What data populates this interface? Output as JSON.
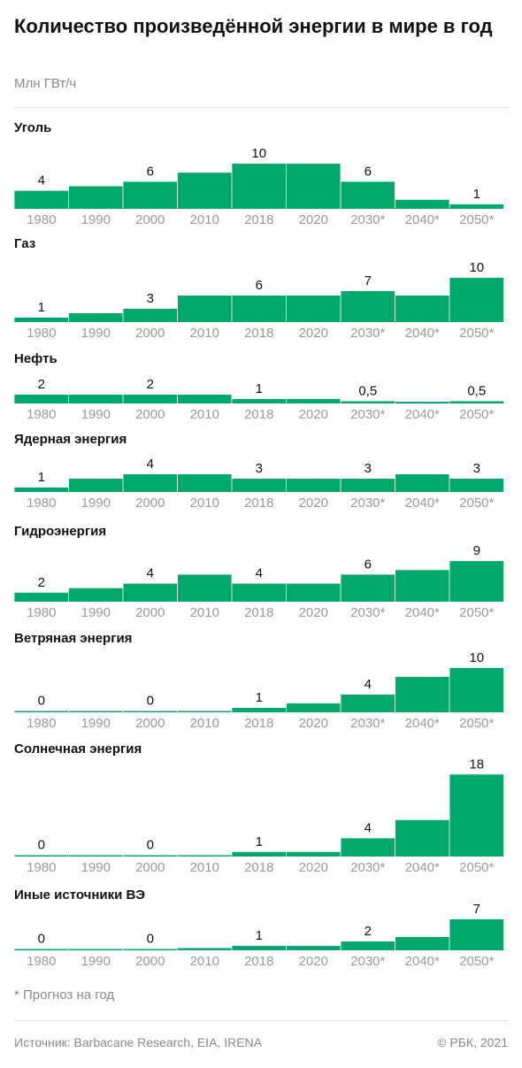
{
  "title": "Количество произведённой энергии в мире в год",
  "units": "Млн ГВт/ч",
  "footnote": "* Прогноз на год",
  "source": "Источник:  Barbacane Research, EIA, IRENA",
  "copyright": "© РБК, 2021",
  "colors": {
    "bar": "#00a86b",
    "tick": "#9a9a9a",
    "rule": "#e2e2e2"
  },
  "chart_data": [
    {
      "type": "bar",
      "title": "Уголь",
      "categories": [
        "1980",
        "1990",
        "2000",
        "2010",
        "2018",
        "2020",
        "2030*",
        "2040*",
        "2050*"
      ],
      "values": [
        4,
        5,
        6,
        8,
        10,
        10,
        6,
        2,
        1
      ],
      "labels": [
        "4",
        "",
        "6",
        "",
        "10",
        "",
        "6",
        "",
        "1"
      ]
    },
    {
      "type": "bar",
      "title": "Газ",
      "categories": [
        "1980",
        "1990",
        "2000",
        "2010",
        "2018",
        "2020",
        "2030*",
        "2040*",
        "2050*"
      ],
      "values": [
        1,
        2,
        3,
        6,
        6,
        6,
        7,
        6,
        10
      ],
      "labels": [
        "1",
        "",
        "3",
        "",
        "6",
        "",
        "7",
        "",
        "10"
      ]
    },
    {
      "type": "bar",
      "title": "Нефть",
      "categories": [
        "1980",
        "1990",
        "2000",
        "2010",
        "2018",
        "2020",
        "2030*",
        "2040*",
        "2050*"
      ],
      "values": [
        2,
        2,
        2,
        2,
        1,
        1,
        0.5,
        0.3,
        0.5
      ],
      "labels": [
        "2",
        "",
        "2",
        "",
        "1",
        "",
        "0,5",
        "",
        "0,5"
      ]
    },
    {
      "type": "bar",
      "title": "Ядерная энергия",
      "categories": [
        "1980",
        "1990",
        "2000",
        "2010",
        "2018",
        "2020",
        "2030*",
        "2040*",
        "2050*"
      ],
      "values": [
        1,
        3,
        4,
        4,
        3,
        3,
        3,
        4,
        3
      ],
      "labels": [
        "1",
        "",
        "4",
        "",
        "3",
        "",
        "3",
        "",
        "3"
      ]
    },
    {
      "type": "bar",
      "title": "Гидроэнергия",
      "categories": [
        "1980",
        "1990",
        "2000",
        "2010",
        "2018",
        "2020",
        "2030*",
        "2040*",
        "2050*"
      ],
      "values": [
        2,
        3,
        4,
        6,
        4,
        4,
        6,
        7,
        9
      ],
      "labels": [
        "2",
        "",
        "4",
        "",
        "4",
        "",
        "6",
        "",
        "9"
      ]
    },
    {
      "type": "bar",
      "title": "Ветряная энергия",
      "categories": [
        "1980",
        "1990",
        "2000",
        "2010",
        "2018",
        "2020",
        "2030*",
        "2040*",
        "2050*"
      ],
      "values": [
        0,
        0,
        0,
        0,
        1,
        2,
        4,
        8,
        10
      ],
      "labels": [
        "0",
        "",
        "0",
        "",
        "1",
        "",
        "4",
        "",
        "10"
      ]
    },
    {
      "type": "bar",
      "title": "Солнечная энергия",
      "categories": [
        "1980",
        "1990",
        "2000",
        "2010",
        "2018",
        "2020",
        "2030*",
        "2040*",
        "2050*"
      ],
      "values": [
        0,
        0,
        0,
        0,
        1,
        1,
        4,
        8,
        18
      ],
      "labels": [
        "0",
        "",
        "0",
        "",
        "1",
        "",
        "4",
        "",
        "18"
      ]
    },
    {
      "type": "bar",
      "title": "Иные источники ВЭ",
      "categories": [
        "1980",
        "1990",
        "2000",
        "2010",
        "2018",
        "2020",
        "2030*",
        "2040*",
        "2050*"
      ],
      "values": [
        0,
        0,
        0,
        0.5,
        1,
        1,
        2,
        3,
        7
      ],
      "labels": [
        "0",
        "",
        "0",
        "",
        "1",
        "",
        "2",
        "",
        "7"
      ]
    }
  ]
}
